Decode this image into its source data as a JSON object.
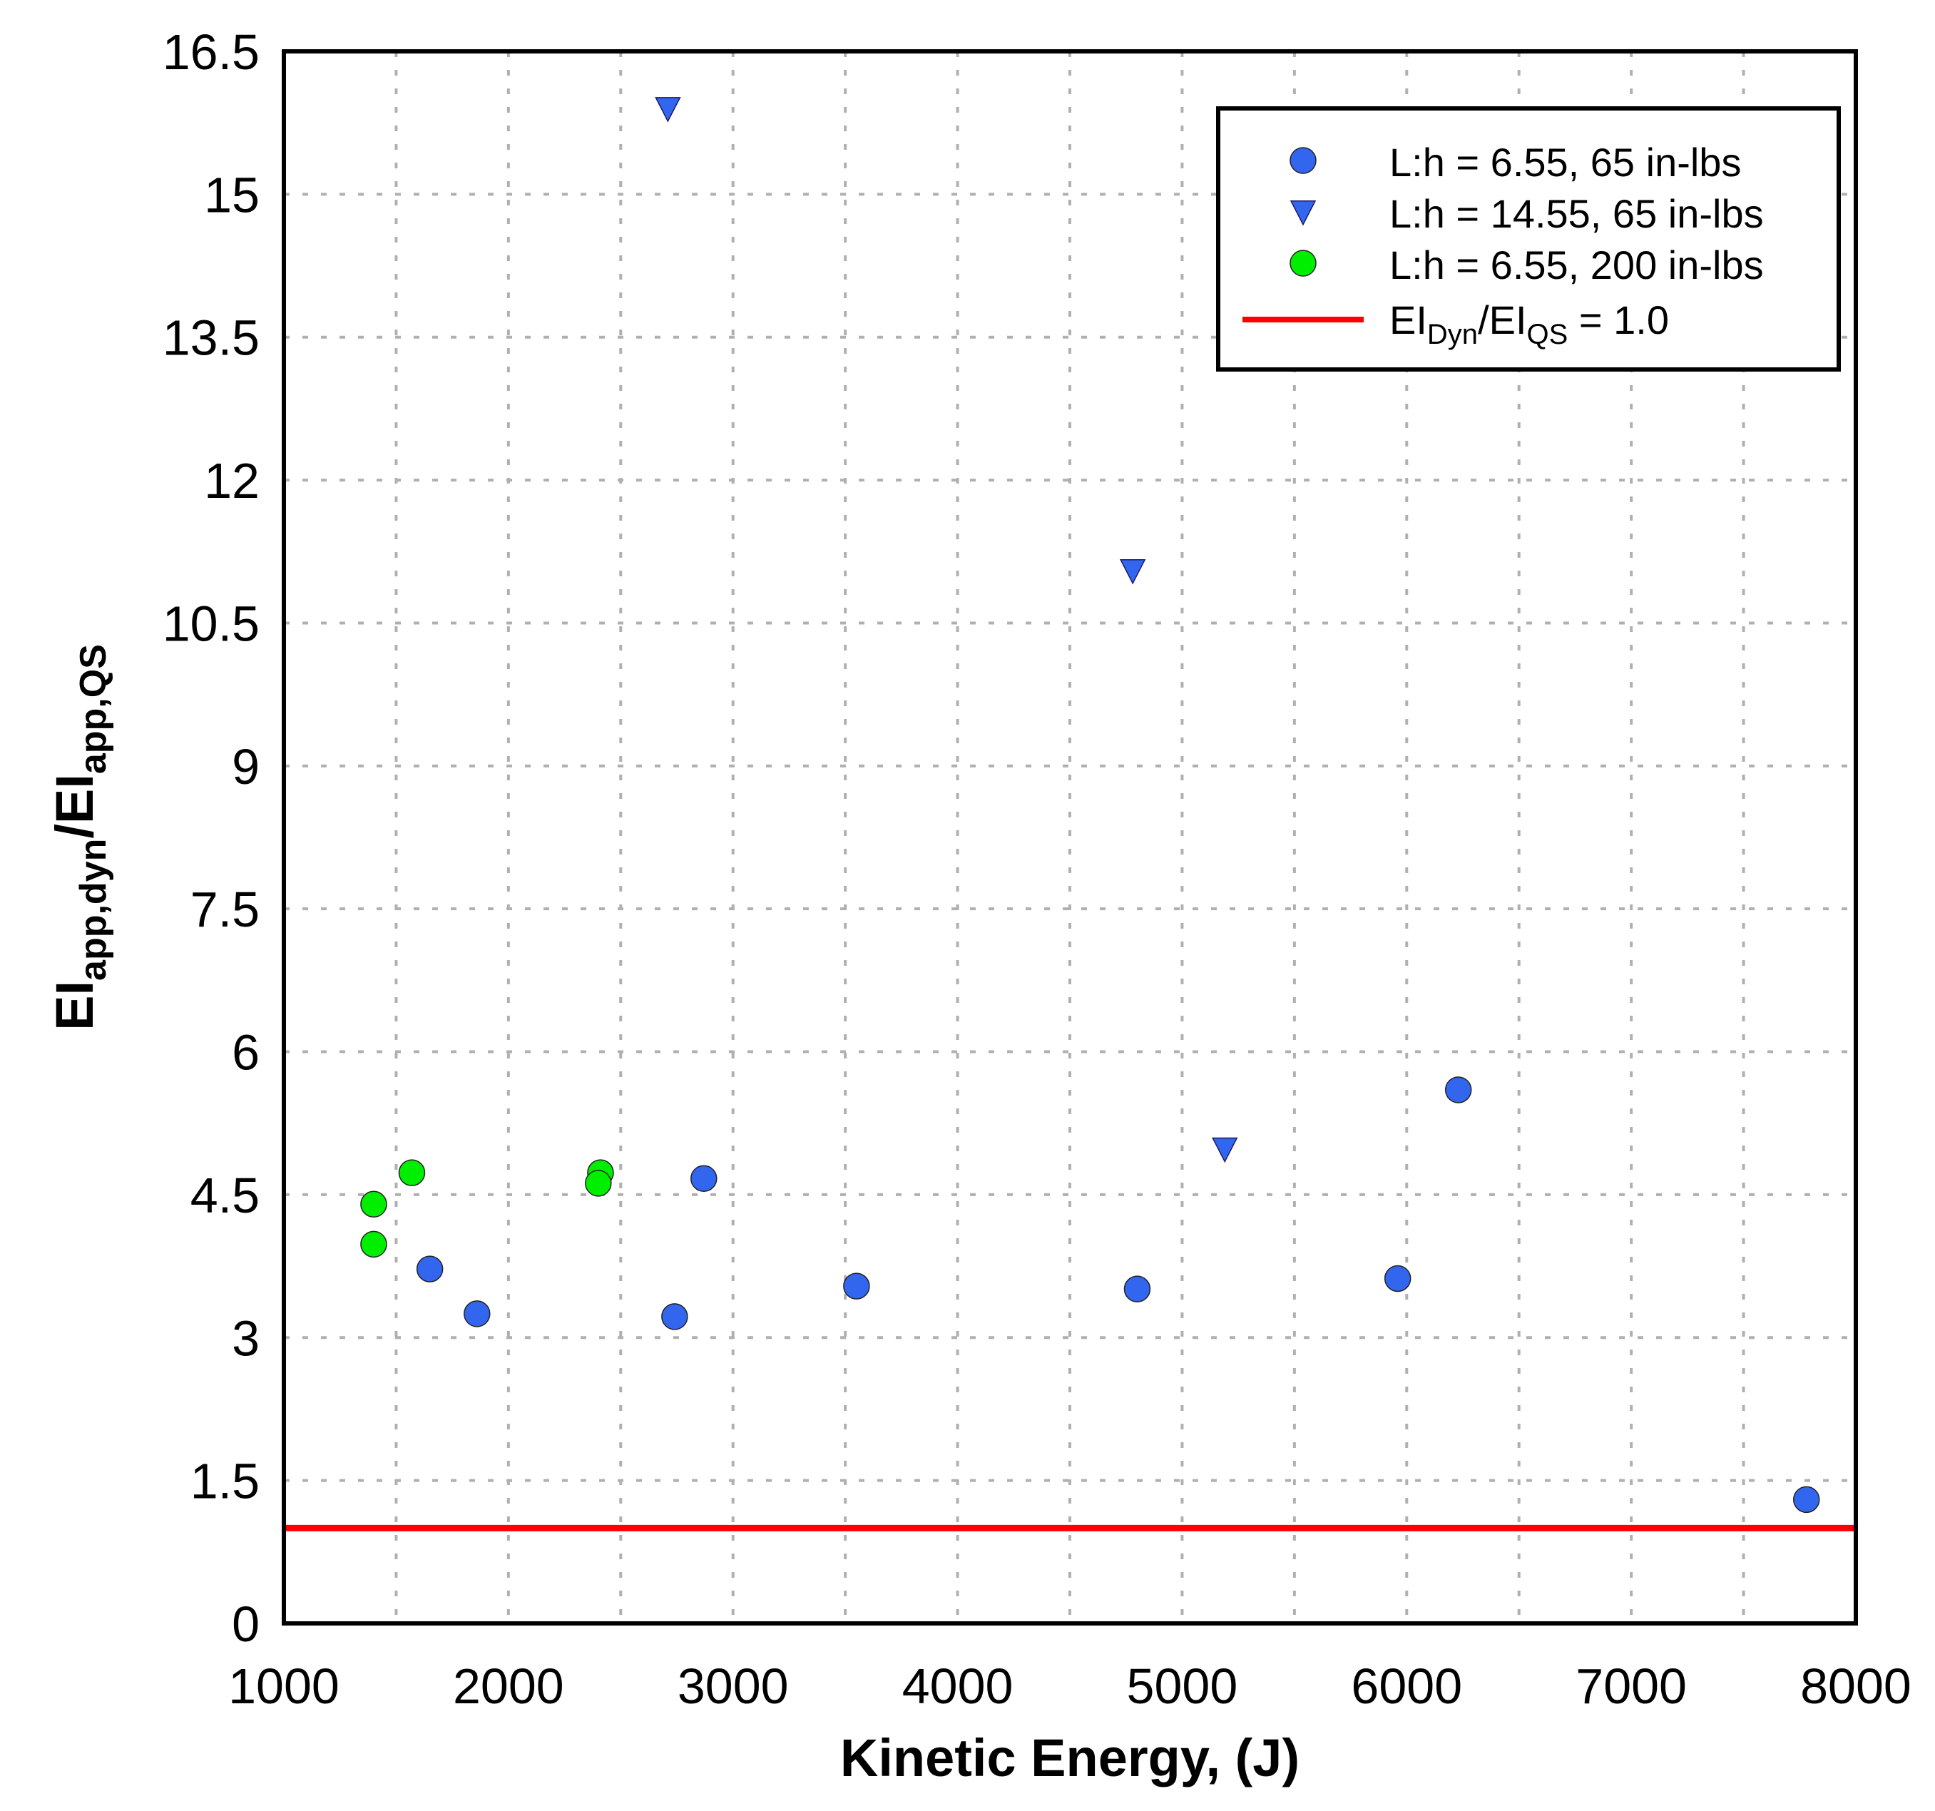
{
  "chart_data": {
    "type": "scatter",
    "title": "",
    "xlabel": "Kinetic Energy, (J)",
    "ylabel": {
      "base1": "EI",
      "sub1": "app,dyn",
      "sep": "/EI",
      "sub2": "app,QS"
    },
    "xlim": [
      1000,
      8000
    ],
    "ylim": [
      0,
      16.5
    ],
    "x_ticks": [
      1000,
      2000,
      3000,
      4000,
      5000,
      6000,
      7000,
      8000
    ],
    "x_tick_labels": [
      "1000",
      "2000",
      "3000",
      "4000",
      "5000",
      "6000",
      "7000",
      "8000"
    ],
    "y_ticks": [
      0,
      1.5,
      3,
      4.5,
      6,
      7.5,
      9,
      10.5,
      12,
      13.5,
      15,
      16.5
    ],
    "y_tick_labels": [
      "0",
      "1.5",
      "3",
      "4.5",
      "6",
      "7.5",
      "9",
      "10.5",
      "12",
      "13.5",
      "15",
      "16.5"
    ],
    "grid": true,
    "grid_style": "dotted",
    "legend_position": "top-right",
    "series": [
      {
        "name": "L:h = 6.55, 65 in-lbs",
        "marker": "circle",
        "color": "#3366ee",
        "points": [
          {
            "x": 1650,
            "y": 3.72
          },
          {
            "x": 1860,
            "y": 3.25
          },
          {
            "x": 2740,
            "y": 3.22
          },
          {
            "x": 2870,
            "y": 4.67
          },
          {
            "x": 3550,
            "y": 3.54
          },
          {
            "x": 4800,
            "y": 3.51
          },
          {
            "x": 5960,
            "y": 3.62
          },
          {
            "x": 6230,
            "y": 5.6
          },
          {
            "x": 7780,
            "y": 1.3
          }
        ]
      },
      {
        "name": "L:h = 14.55, 65 in-lbs",
        "marker": "triangle-down",
        "color": "#3366ee",
        "points": [
          {
            "x": 2710,
            "y": 15.9
          },
          {
            "x": 4780,
            "y": 11.05
          },
          {
            "x": 5190,
            "y": 4.98
          }
        ]
      },
      {
        "name": "L:h = 6.55, 200 in-lbs",
        "marker": "circle",
        "color": "#00ee00",
        "points": [
          {
            "x": 1400,
            "y": 4.4
          },
          {
            "x": 1400,
            "y": 3.98
          },
          {
            "x": 1570,
            "y": 4.73
          },
          {
            "x": 2410,
            "y": 4.73
          },
          {
            "x": 2400,
            "y": 4.62
          }
        ]
      }
    ],
    "reference_line": {
      "y": 1.0,
      "color": "#ff0000",
      "label": {
        "base1": "EI",
        "sub1": "Dyn",
        "sep": "/EI",
        "sub2": "QS",
        "tail": " = 1.0"
      }
    }
  }
}
